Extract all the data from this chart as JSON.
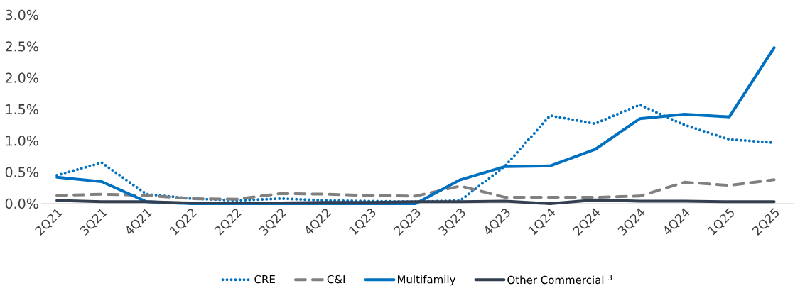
{
  "chart_data": {
    "type": "line",
    "categories": [
      "2Q21",
      "3Q21",
      "4Q21",
      "1Q22",
      "2Q22",
      "3Q22",
      "4Q22",
      "1Q23",
      "2Q23",
      "3Q23",
      "4Q23",
      "1Q24",
      "2Q24",
      "3Q24",
      "4Q24",
      "1Q25",
      "2Q25"
    ],
    "series": [
      {
        "name": "CRE",
        "color": "#0070c0",
        "line_style": "dotted",
        "values": [
          0.45,
          0.65,
          0.15,
          0.08,
          0.05,
          0.08,
          0.05,
          0.04,
          0.03,
          0.05,
          0.6,
          1.4,
          1.27,
          1.57,
          1.25,
          1.02,
          0.97
        ]
      },
      {
        "name": "C&I",
        "color": "#808080",
        "line_style": "dashed",
        "values": [
          0.13,
          0.15,
          0.13,
          0.08,
          0.07,
          0.16,
          0.15,
          0.13,
          0.12,
          0.28,
          0.1,
          0.1,
          0.1,
          0.12,
          0.34,
          0.29,
          0.38
        ]
      },
      {
        "name": "Multifamily",
        "color": "#0070c0",
        "line_style": "solid",
        "values": [
          0.42,
          0.35,
          0.03,
          0.0,
          0.0,
          0.0,
          0.0,
          0.0,
          0.0,
          0.38,
          0.59,
          0.6,
          0.86,
          1.35,
          1.42,
          1.38,
          2.48
        ]
      },
      {
        "name": "Other Commercial $^{3}$",
        "color": "#333f50",
        "line_style": "solid",
        "values": [
          0.05,
          0.03,
          0.03,
          0.01,
          0.01,
          0.01,
          0.02,
          0.02,
          0.03,
          0.03,
          0.04,
          0.0,
          0.06,
          0.04,
          0.04,
          0.03,
          0.03
        ]
      }
    ],
    "ylim": [
      0,
      3.0
    ],
    "yticks": [
      {
        "value": 0,
        "label": "0.0%"
      },
      {
        "value": 0.5,
        "label": "0.5%"
      },
      {
        "value": 1.0,
        "label": "1.0%"
      },
      {
        "value": 1.5,
        "label": "1.5%"
      },
      {
        "value": 2.0,
        "label": "2.0%"
      },
      {
        "value": 2.5,
        "label": "2.5%"
      },
      {
        "value": 3.0,
        "label": "3.0%"
      }
    ],
    "grid": false,
    "legend": "bottom",
    "marker": "none"
  }
}
